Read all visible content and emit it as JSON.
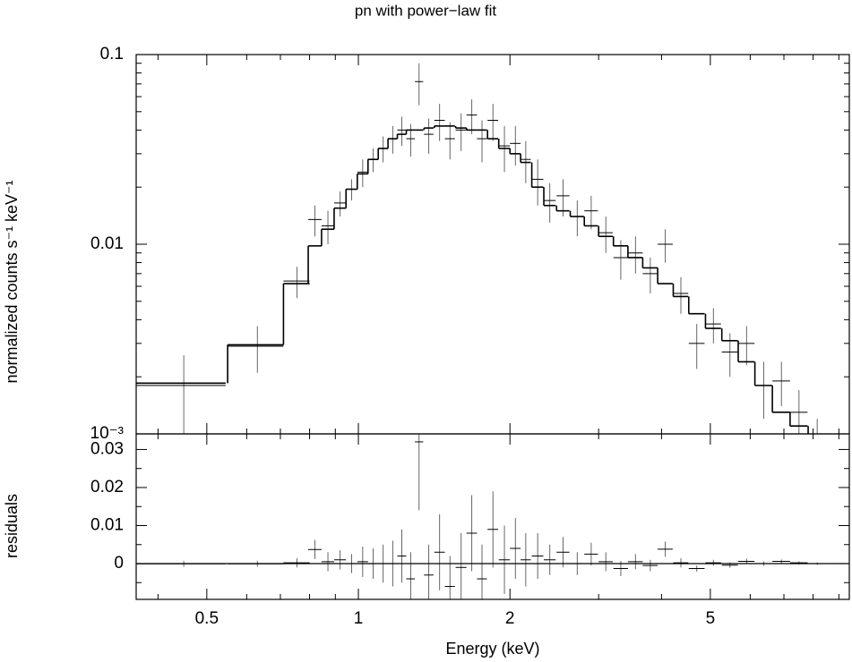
{
  "chart_data": [
    {
      "type": "spectrum",
      "title": "pn with power−law fit",
      "ylabel": "normalized counts s⁻¹ keV⁻¹",
      "xlog": true,
      "ylog": true,
      "xlim": [
        0.362,
        9.44
      ],
      "ylim": [
        0.001,
        0.1
      ],
      "xticks": [
        0.5,
        1,
        2,
        5
      ],
      "xminorticks": [
        0.4,
        0.6,
        0.7,
        0.8,
        0.9,
        3,
        4,
        6,
        7,
        8,
        9
      ],
      "yticks": [
        {
          "value": 0.001,
          "label": "10⁻³"
        },
        0.01,
        0.1
      ],
      "yminorticks": [
        0.002,
        0.003,
        0.004,
        0.005,
        0.006,
        0.007,
        0.008,
        0.009,
        0.02,
        0.03,
        0.04,
        0.05,
        0.06,
        0.07,
        0.08,
        0.09
      ],
      "color": "#000000",
      "x": [
        0.45,
        0.63,
        0.755,
        0.82,
        0.87,
        0.92,
        0.97,
        1.02,
        1.07,
        1.12,
        1.17,
        1.22,
        1.27,
        1.32,
        1.38,
        1.45,
        1.52,
        1.6,
        1.68,
        1.76,
        1.85,
        1.95,
        2.05,
        2.15,
        2.27,
        2.4,
        2.55,
        2.72,
        2.9,
        3.1,
        3.32,
        3.55,
        3.8,
        4.07,
        4.37,
        4.7,
        5.07,
        5.47,
        5.9,
        6.38,
        6.92,
        7.5,
        8.15
      ],
      "xerr": [
        0.095,
        0.08,
        0.045,
        0.025,
        0.025,
        0.025,
        0.025,
        0.025,
        0.025,
        0.025,
        0.025,
        0.025,
        0.025,
        0.025,
        0.03,
        0.035,
        0.035,
        0.04,
        0.04,
        0.04,
        0.045,
        0.05,
        0.05,
        0.05,
        0.06,
        0.065,
        0.075,
        0.085,
        0.09,
        0.1,
        0.11,
        0.12,
        0.13,
        0.14,
        0.15,
        0.17,
        0.18,
        0.2,
        0.22,
        0.25,
        0.28,
        0.3,
        0.33
      ],
      "values": [
        0.0018,
        0.0029,
        0.0064,
        0.0135,
        0.0125,
        0.0165,
        0.0195,
        0.024,
        0.028,
        0.032,
        0.036,
        0.04,
        0.036,
        0.072,
        0.038,
        0.045,
        0.036,
        0.04,
        0.048,
        0.036,
        0.045,
        0.033,
        0.034,
        0.028,
        0.022,
        0.017,
        0.018,
        0.014,
        0.015,
        0.0115,
        0.0085,
        0.009,
        0.007,
        0.01,
        0.0055,
        0.003,
        0.0038,
        0.0027,
        0.003,
        0.0018,
        0.0019,
        0.0013,
        0.0009
      ],
      "yerr": [
        0.0008,
        0.0008,
        0.0012,
        0.0025,
        0.0025,
        0.0025,
        0.0025,
        0.004,
        0.004,
        0.005,
        0.006,
        0.007,
        0.007,
        0.018,
        0.008,
        0.01,
        0.008,
        0.009,
        0.01,
        0.009,
        0.01,
        0.009,
        0.008,
        0.007,
        0.006,
        0.004,
        0.004,
        0.003,
        0.003,
        0.0025,
        0.002,
        0.002,
        0.0015,
        0.002,
        0.0012,
        0.0008,
        0.0008,
        0.0007,
        0.0007,
        0.0006,
        0.0005,
        0.0004,
        0.0003
      ],
      "model": [
        0.00185,
        0.00295,
        0.0062,
        0.0098,
        0.012,
        0.0155,
        0.0195,
        0.0235,
        0.028,
        0.032,
        0.036,
        0.038,
        0.04,
        0.04,
        0.041,
        0.042,
        0.042,
        0.041,
        0.04,
        0.04,
        0.036,
        0.032,
        0.03,
        0.027,
        0.02,
        0.016,
        0.015,
        0.014,
        0.0125,
        0.011,
        0.0098,
        0.0085,
        0.0075,
        0.0062,
        0.0053,
        0.0043,
        0.0036,
        0.0031,
        0.0024,
        0.0018,
        0.0013,
        0.0011,
        0.0009
      ]
    },
    {
      "type": "residuals",
      "ylabel": "residuals",
      "xlabel": "Energy (keV)",
      "xlog": true,
      "ylog": false,
      "xlim": [
        0.362,
        9.44
      ],
      "ylim": [
        -0.0094,
        0.0341
      ],
      "xticks": [
        0.5,
        1,
        2,
        5
      ],
      "xminorticks": [
        0.4,
        0.6,
        0.7,
        0.8,
        0.9,
        3,
        4,
        6,
        7,
        8,
        9
      ],
      "yticks": [
        0,
        0.01,
        0.02,
        0.03
      ],
      "yminorticks": [
        -0.005,
        0.005,
        0.015,
        0.025
      ],
      "color": "#000000",
      "x": [
        0.45,
        0.63,
        0.755,
        0.82,
        0.87,
        0.92,
        0.97,
        1.02,
        1.07,
        1.12,
        1.17,
        1.22,
        1.27,
        1.32,
        1.38,
        1.45,
        1.52,
        1.6,
        1.68,
        1.76,
        1.85,
        1.95,
        2.05,
        2.15,
        2.27,
        2.4,
        2.55,
        2.72,
        2.9,
        3.1,
        3.32,
        3.55,
        3.8,
        4.07,
        4.37,
        4.7,
        5.07,
        5.47,
        5.9,
        6.38,
        6.92,
        7.5,
        8.15
      ],
      "xerr": [
        0.095,
        0.08,
        0.045,
        0.025,
        0.025,
        0.025,
        0.025,
        0.025,
        0.025,
        0.025,
        0.025,
        0.025,
        0.025,
        0.025,
        0.03,
        0.035,
        0.035,
        0.04,
        0.04,
        0.04,
        0.045,
        0.05,
        0.05,
        0.05,
        0.06,
        0.065,
        0.075,
        0.085,
        0.09,
        0.1,
        0.11,
        0.12,
        0.13,
        0.14,
        0.15,
        0.17,
        0.18,
        0.2,
        0.22,
        0.25,
        0.28,
        0.3,
        0.33
      ],
      "values": [
        -5e-05,
        -5e-05,
        0.0002,
        0.0037,
        0.0005,
        0.001,
        0,
        0.0005,
        0,
        0,
        0,
        0.002,
        -0.004,
        0.032,
        -0.003,
        0.003,
        -0.006,
        -0.001,
        0.008,
        -0.004,
        0.009,
        0.001,
        0.004,
        0.001,
        0.002,
        0.001,
        0.003,
        0,
        0.0025,
        0.0005,
        -0.0013,
        0.0005,
        -0.0005,
        0.0038,
        0.0002,
        -0.0013,
        0.0002,
        -0.0004,
        0.0006,
        0,
        0.0006,
        0.0002,
        0
      ],
      "yerr": [
        0.0008,
        0.0008,
        0.0012,
        0.0025,
        0.0025,
        0.0025,
        0.0025,
        0.004,
        0.004,
        0.005,
        0.006,
        0.007,
        0.007,
        0.018,
        0.008,
        0.01,
        0.008,
        0.009,
        0.01,
        0.009,
        0.01,
        0.009,
        0.008,
        0.007,
        0.006,
        0.004,
        0.004,
        0.003,
        0.003,
        0.0025,
        0.002,
        0.002,
        0.0015,
        0.002,
        0.0012,
        0.0008,
        0.0008,
        0.0007,
        0.0007,
        0.0006,
        0.0005,
        0.0004,
        0.0003
      ]
    }
  ]
}
